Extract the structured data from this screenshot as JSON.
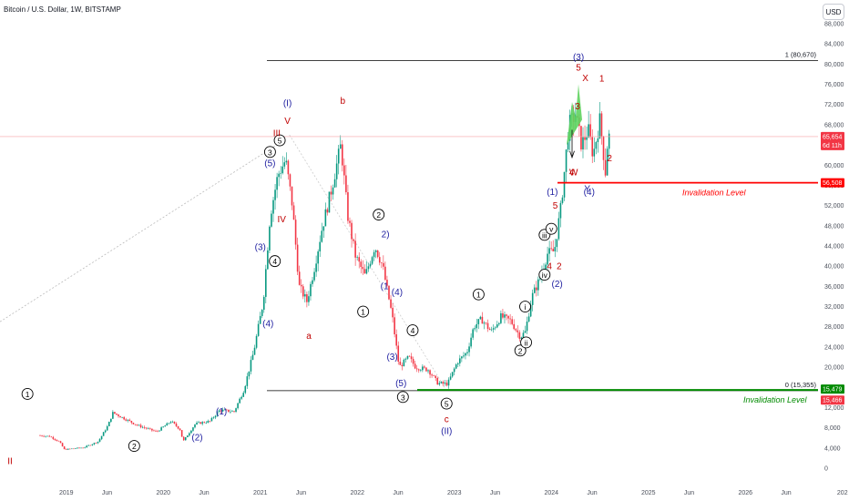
{
  "header": {
    "title": "Bitcoin / U.S. Dollar, 1W, BITSTAMP",
    "currency": "USD"
  },
  "chart_data": {
    "type": "candlestick",
    "price_axis": [
      "88,000",
      "84,000",
      "80,000",
      "76,000",
      "72,000",
      "68,000",
      "64,000",
      "60,000",
      "56,000",
      "52,000",
      "48,000",
      "44,000",
      "40,000",
      "36,000",
      "32,000",
      "28,000",
      "24,000",
      "20,000",
      "16,000",
      "12,000",
      "8,000",
      "4,000",
      "0"
    ],
    "time_axis": [
      "2019",
      "Jun",
      "2020",
      "Jun",
      "2021",
      "Jun",
      "2022",
      "Jun",
      "2023",
      "Jun",
      "2024",
      "Jun",
      "2025",
      "Jun",
      "2026",
      "Jun",
      "202"
    ],
    "ylim": [
      0,
      88000
    ],
    "current_price": {
      "value": "65,654",
      "countdown": "6d 11h"
    },
    "levels": [
      {
        "label": "1 (80,670)",
        "value": 80670,
        "color": "#000000"
      },
      {
        "label": "0 (15,355)",
        "value": 15355,
        "color": "#000000"
      },
      {
        "label": "Invalidation Level",
        "value": 56508,
        "tag": "56,508",
        "color": "#ff0000"
      },
      {
        "label": "Invalidation Level",
        "value": 15479,
        "tag": "15,479",
        "color": "#008a00"
      }
    ],
    "price_tags": [
      {
        "text": "65,654",
        "value": 65654,
        "color": "#f23645"
      },
      {
        "text": "56,508",
        "value": 56508,
        "color": "#ff0000"
      },
      {
        "text": "15,479",
        "value": 15479,
        "color": "#008a00"
      },
      {
        "text": "15,466",
        "value": 15466,
        "color": "#f23645"
      }
    ],
    "wave_labels": [
      {
        "t": "1",
        "style": "circle",
        "color": "#000000",
        "x": 2018.6,
        "y": 14700
      },
      {
        "t": "2",
        "style": "circle",
        "color": "#000000",
        "x": 2019.7,
        "y": 4400
      },
      {
        "t": "(1)",
        "style": "plain",
        "color": "#1e1ea0",
        "x": 2020.6,
        "y": 11300
      },
      {
        "t": "(2)",
        "style": "plain",
        "color": "#1e1ea0",
        "x": 2020.35,
        "y": 6100
      },
      {
        "t": "(3)",
        "style": "plain",
        "color": "#1e1ea0",
        "x": 2021.0,
        "y": 43800
      },
      {
        "t": "(4)",
        "style": "plain",
        "color": "#1e1ea0",
        "x": 2021.08,
        "y": 28700
      },
      {
        "t": "4",
        "style": "circle",
        "color": "#000000",
        "x": 2021.15,
        "y": 41000
      },
      {
        "t": "(5)",
        "style": "plain",
        "color": "#1e1ea0",
        "x": 2021.1,
        "y": 60400
      },
      {
        "t": "3",
        "style": "circle",
        "color": "#000000",
        "x": 2021.1,
        "y": 62600
      },
      {
        "t": "5",
        "style": "circle",
        "color": "#000000",
        "x": 2021.2,
        "y": 64900
      },
      {
        "t": "III",
        "style": "plain",
        "color": "#c00000",
        "x": 2021.17,
        "y": 66400
      },
      {
        "t": "IV",
        "style": "plain",
        "color": "#c00000",
        "x": 2021.22,
        "y": 49300
      },
      {
        "t": "V",
        "style": "plain",
        "color": "#c00000",
        "x": 2021.28,
        "y": 68800
      },
      {
        "t": "(I)",
        "style": "plain",
        "color": "#1e1ea0",
        "x": 2021.28,
        "y": 72300
      },
      {
        "t": "a",
        "style": "plain",
        "color": "#c00000",
        "x": 2021.5,
        "y": 26200
      },
      {
        "t": "b",
        "style": "plain",
        "color": "#c00000",
        "x": 2021.85,
        "y": 72800
      },
      {
        "t": "1",
        "style": "circle",
        "color": "#000000",
        "x": 2022.06,
        "y": 31000
      },
      {
        "t": "2",
        "style": "circle",
        "color": "#000000",
        "x": 2022.22,
        "y": 50200
      },
      {
        "t": "2)",
        "style": "plain",
        "color": "#1e1ea0",
        "x": 2022.29,
        "y": 46300
      },
      {
        "t": "(1",
        "style": "plain",
        "color": "#1e1ea0",
        "x": 2022.28,
        "y": 36100
      },
      {
        "t": "(4)",
        "style": "plain",
        "color": "#1e1ea0",
        "x": 2022.41,
        "y": 34900
      },
      {
        "t": "(3)",
        "style": "plain",
        "color": "#1e1ea0",
        "x": 2022.36,
        "y": 22100
      },
      {
        "t": "4",
        "style": "circle",
        "color": "#000000",
        "x": 2022.57,
        "y": 27300
      },
      {
        "t": "(5)",
        "style": "plain",
        "color": "#1e1ea0",
        "x": 2022.45,
        "y": 16900
      },
      {
        "t": "3",
        "style": "circle",
        "color": "#000000",
        "x": 2022.47,
        "y": 14100
      },
      {
        "t": "5",
        "style": "circle",
        "color": "#000000",
        "x": 2022.92,
        "y": 12800
      },
      {
        "t": "c",
        "style": "plain",
        "color": "#c00000",
        "x": 2022.92,
        "y": 9700
      },
      {
        "t": "(II)",
        "style": "plain",
        "color": "#1e1ea0",
        "x": 2022.92,
        "y": 7400
      },
      {
        "t": "1",
        "style": "circle",
        "color": "#000000",
        "x": 2023.25,
        "y": 34400
      },
      {
        "t": "2",
        "style": "circle",
        "color": "#000000",
        "x": 2023.68,
        "y": 23300
      },
      {
        "t": "i",
        "style": "circle",
        "color": "#000000",
        "x": 2023.73,
        "y": 32000
      },
      {
        "t": "ii",
        "style": "circle",
        "color": "#000000",
        "x": 2023.74,
        "y": 24900
      },
      {
        "t": "iii",
        "style": "circle",
        "color": "#000000",
        "x": 2023.93,
        "y": 46200
      },
      {
        "t": "iv",
        "style": "circle",
        "color": "#000000",
        "x": 2023.93,
        "y": 38300
      },
      {
        "t": "v",
        "style": "circle",
        "color": "#000000",
        "x": 2024.0,
        "y": 47400
      },
      {
        "t": "2",
        "style": "plain",
        "color": "#c00000",
        "x": 2024.08,
        "y": 40000
      },
      {
        "t": "4",
        "style": "plain",
        "color": "#c00000",
        "x": 2023.98,
        "y": 40000
      },
      {
        "t": "(2)",
        "style": "plain",
        "color": "#1e1ea0",
        "x": 2024.06,
        "y": 36500
      },
      {
        "t": "(1)",
        "style": "plain",
        "color": "#1e1ea0",
        "x": 2024.01,
        "y": 54700
      },
      {
        "t": "5",
        "style": "plain",
        "color": "#c00000",
        "x": 2024.04,
        "y": 52000
      },
      {
        "t": "3",
        "style": "plain",
        "color": "#c00000",
        "x": 2024.27,
        "y": 71700
      },
      {
        "t": "5",
        "style": "plain",
        "color": "#c00000",
        "x": 2024.28,
        "y": 79300
      },
      {
        "t": "(3)",
        "style": "plain",
        "color": "#1e1ea0",
        "x": 2024.28,
        "y": 81400
      },
      {
        "t": "4",
        "style": "plain",
        "color": "#c00000",
        "x": 2024.21,
        "y": 58600
      },
      {
        "t": "W",
        "style": "plain",
        "color": "#c00000",
        "x": 2024.23,
        "y": 58600
      },
      {
        "t": "X",
        "style": "plain",
        "color": "#c00000",
        "x": 2024.35,
        "y": 77300
      },
      {
        "t": "Y",
        "style": "plain",
        "color": "#1e1ea0",
        "x": 2024.37,
        "y": 55400
      },
      {
        "t": "(4)",
        "style": "plain",
        "color": "#1e1ea0",
        "x": 2024.39,
        "y": 54700
      },
      {
        "t": "1",
        "style": "plain",
        "color": "#c00000",
        "x": 2024.52,
        "y": 77200
      },
      {
        "t": "2",
        "style": "plain",
        "color": "#c00000",
        "x": 2024.6,
        "y": 61400
      },
      {
        "t": "II",
        "style": "plain",
        "color": "#c00000",
        "x": 2018.42,
        "y": 1400
      }
    ]
  }
}
